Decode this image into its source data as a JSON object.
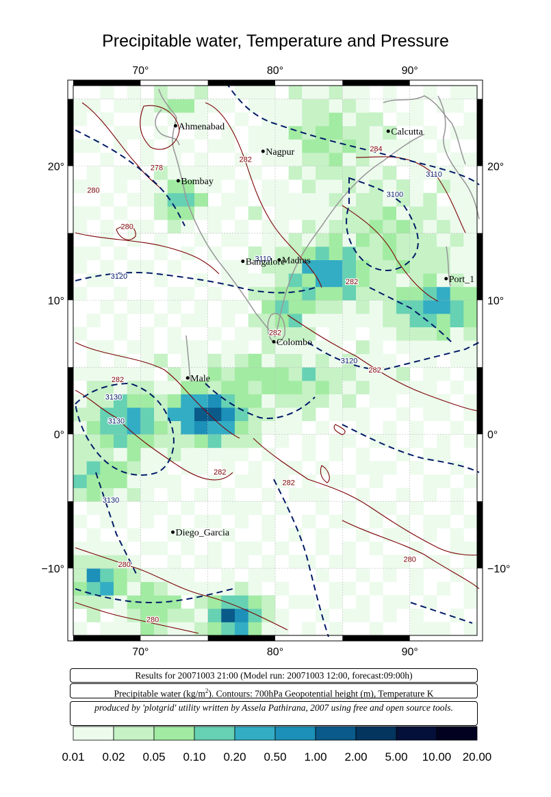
{
  "title": "Precipitable water, Temperature and Pressure",
  "map": {
    "lon_range": [
      65,
      95
    ],
    "lat_range": [
      -15,
      26
    ],
    "lon_ticks": [
      {
        "value": 70,
        "label": "70°"
      },
      {
        "value": 80,
        "label": "80°"
      },
      {
        "value": 90,
        "label": "90°"
      }
    ],
    "lat_ticks": [
      {
        "value": 20,
        "label": "20°"
      },
      {
        "value": 10,
        "label": "10°"
      },
      {
        "value": 0,
        "label": "0°"
      },
      {
        "value": -10,
        "label": "−10°"
      }
    ],
    "cities": [
      {
        "name": "Ahmenabad",
        "lon": 72.6,
        "lat": 23.0
      },
      {
        "name": "Nagpur",
        "lon": 79.1,
        "lat": 21.1
      },
      {
        "name": "Calcutta",
        "lon": 88.4,
        "lat": 22.6
      },
      {
        "name": "Bombay",
        "lon": 72.8,
        "lat": 18.9
      },
      {
        "name": "Bangalore",
        "lon": 77.6,
        "lat": 12.9
      },
      {
        "name": "Madras",
        "lon": 80.3,
        "lat": 13.0
      },
      {
        "name": "Port_1",
        "lon": 92.7,
        "lat": 11.6
      },
      {
        "name": "Colombo",
        "lon": 79.9,
        "lat": 6.9
      },
      {
        "name": "Male",
        "lon": 73.5,
        "lat": 4.2
      },
      {
        "name": "Diego_Garcia",
        "lon": 72.4,
        "lat": -7.3
      }
    ],
    "contour_labels": [
      {
        "text": "278",
        "lon": 71.2,
        "lat": 19.7,
        "kind": "temperature"
      },
      {
        "text": "282",
        "lon": 77.8,
        "lat": 20.3,
        "kind": "temperature"
      },
      {
        "text": "284",
        "lon": 87.5,
        "lat": 21.1,
        "kind": "temperature"
      },
      {
        "text": "280",
        "lon": 66.5,
        "lat": 18.0,
        "kind": "temperature"
      },
      {
        "text": "280",
        "lon": 69.0,
        "lat": 15.3,
        "kind": "temperature"
      },
      {
        "text": "282",
        "lon": 85.7,
        "lat": 11.2,
        "kind": "temperature"
      },
      {
        "text": "282",
        "lon": 80.0,
        "lat": 7.4,
        "kind": "temperature"
      },
      {
        "text": "282",
        "lon": 87.4,
        "lat": 4.6,
        "kind": "temperature"
      },
      {
        "text": "282",
        "lon": 68.3,
        "lat": 3.9,
        "kind": "temperature"
      },
      {
        "text": "282",
        "lon": 75.9,
        "lat": -3.0,
        "kind": "temperature"
      },
      {
        "text": "282",
        "lon": 81.0,
        "lat": -3.8,
        "kind": "temperature"
      },
      {
        "text": "280",
        "lon": 68.8,
        "lat": -9.9,
        "kind": "temperature"
      },
      {
        "text": "280",
        "lon": 90.0,
        "lat": -9.5,
        "kind": "temperature"
      },
      {
        "text": "280",
        "lon": 70.9,
        "lat": -14.0,
        "kind": "temperature"
      },
      {
        "text": "3110",
        "lon": 91.8,
        "lat": 19.2,
        "kind": "height"
      },
      {
        "text": "3100",
        "lon": 88.9,
        "lat": 17.7,
        "kind": "height"
      },
      {
        "text": "3120",
        "lon": 68.4,
        "lat": 11.6,
        "kind": "height"
      },
      {
        "text": "3120",
        "lon": 85.5,
        "lat": 5.3,
        "kind": "height"
      },
      {
        "text": "3130",
        "lon": 68.0,
        "lat": 2.6,
        "kind": "height"
      },
      {
        "text": "3130",
        "lon": 68.2,
        "lat": 0.8,
        "kind": "height"
      },
      {
        "text": "3130",
        "lon": 67.8,
        "lat": -5.1,
        "kind": "height"
      },
      {
        "text": "3110",
        "lon": 79.1,
        "lat": 12.9,
        "kind": "height"
      }
    ]
  },
  "info": {
    "results": "Results for 20071003 21:00 (Model run: 20071003 12:00, forecast:09:00h)",
    "legend_prefix": "Precipitable water (kg/m",
    "legend_sup": "2",
    "legend_suffix": ").  Contours: 700hPa Geopotential height (m), Temperature K",
    "credit": "produced by 'plotgrid' utility written by Assela Pathirana, 2007 using free and open source tools."
  },
  "colorbar": {
    "labels": [
      "0.01",
      "0.02",
      "0.05",
      "0.10",
      "0.20",
      "0.50",
      "1.00",
      "2.00",
      "5.00",
      "10.00",
      "20.00"
    ],
    "colors": [
      "#edfbed",
      "#c6f2c6",
      "#a2eba2",
      "#66d1b3",
      "#33adc4",
      "#1c90b8",
      "#0a5a8a",
      "#03355e",
      "#05103a",
      "#020220"
    ]
  },
  "colors": {
    "temperature_contour": "#7a0000",
    "height_contour": "#001a66",
    "coastline": "#999999",
    "grid": "#bbbbbb"
  }
}
